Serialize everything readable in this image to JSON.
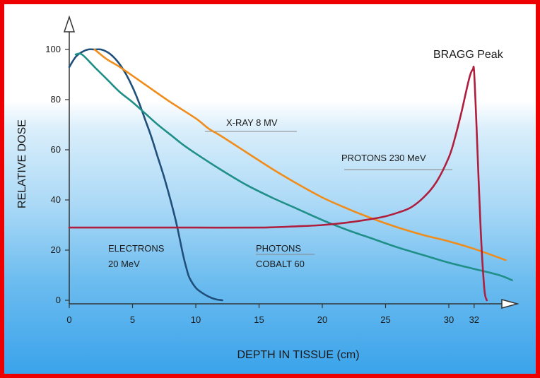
{
  "chart_data": {
    "type": "line",
    "xlabel": "DEPTH IN TISSUE (cm)",
    "ylabel": "RELATIVE DOSE",
    "x_ticks": [
      0,
      5,
      10,
      15,
      20,
      25,
      30,
      32
    ],
    "y_ticks": [
      0,
      20,
      40,
      60,
      80,
      100
    ],
    "xlim": [
      0,
      35
    ],
    "ylim": [
      0,
      105
    ],
    "annotations": {
      "bragg": "BRAGG Peak",
      "xray": "X-RAY 8 MV",
      "protons": "PROTONS 230 MeV",
      "electrons_1": "ELECTRONS",
      "electrons_2": "20 MeV",
      "photons_1": "PHOTONS",
      "photons_2": "COBALT 60"
    },
    "series": [
      {
        "key": "electrons",
        "color": "#1f4f7a",
        "x": [
          0,
          0.5,
          1,
          1.5,
          2,
          2.5,
          3,
          3.5,
          4,
          4.5,
          5,
          5.5,
          6,
          6.5,
          7,
          7.5,
          8,
          8.5,
          9,
          9.3,
          9.5,
          10,
          10.5,
          11,
          11.5,
          12.1
        ],
        "y": [
          93,
          97,
          99,
          100,
          100,
          100,
          99,
          97,
          94,
          90,
          85,
          79,
          72,
          65,
          57,
          49,
          40,
          30,
          18,
          12,
          9,
          5,
          3,
          1.5,
          0.5,
          0
        ]
      },
      {
        "key": "cobalt",
        "color": "#1f8f88",
        "x": [
          0.5,
          1,
          2,
          3,
          4,
          5,
          6,
          7,
          8,
          9,
          10,
          12,
          14,
          16,
          18,
          20,
          22,
          24,
          26,
          28,
          30,
          32,
          34,
          35
        ],
        "y": [
          98,
          98,
          93,
          88,
          83,
          79,
          74.5,
          70,
          66,
          62,
          58.5,
          52,
          46,
          41,
          36.5,
          32,
          28,
          24.5,
          21,
          18,
          15,
          12.5,
          10,
          8
        ]
      },
      {
        "key": "xray",
        "color": "#f08c1a",
        "x": [
          2,
          3,
          4,
          6,
          8,
          10,
          11,
          12,
          14,
          16,
          18,
          20,
          22,
          24,
          26,
          28,
          30,
          32,
          34.5
        ],
        "y": [
          100,
          96,
          93,
          86,
          79,
          72.5,
          68.5,
          65.5,
          59,
          52.5,
          46.5,
          41,
          36.5,
          32.5,
          29,
          26,
          23.5,
          20.5,
          16
        ]
      },
      {
        "key": "protons",
        "color": "#b01e3e",
        "x": [
          0,
          5,
          10,
          15,
          18,
          20,
          22,
          24,
          25,
          26,
          27,
          28,
          29,
          30,
          30.5,
          31,
          31.4,
          31.7,
          31.9,
          32,
          32.2,
          32.5,
          32.8,
          33
        ],
        "y": [
          29,
          29,
          29,
          29,
          29.5,
          30,
          31,
          32.5,
          33.5,
          35,
          37,
          41,
          47,
          57,
          65,
          75,
          84,
          90,
          92,
          91,
          68,
          30,
          5,
          0
        ]
      }
    ]
  }
}
